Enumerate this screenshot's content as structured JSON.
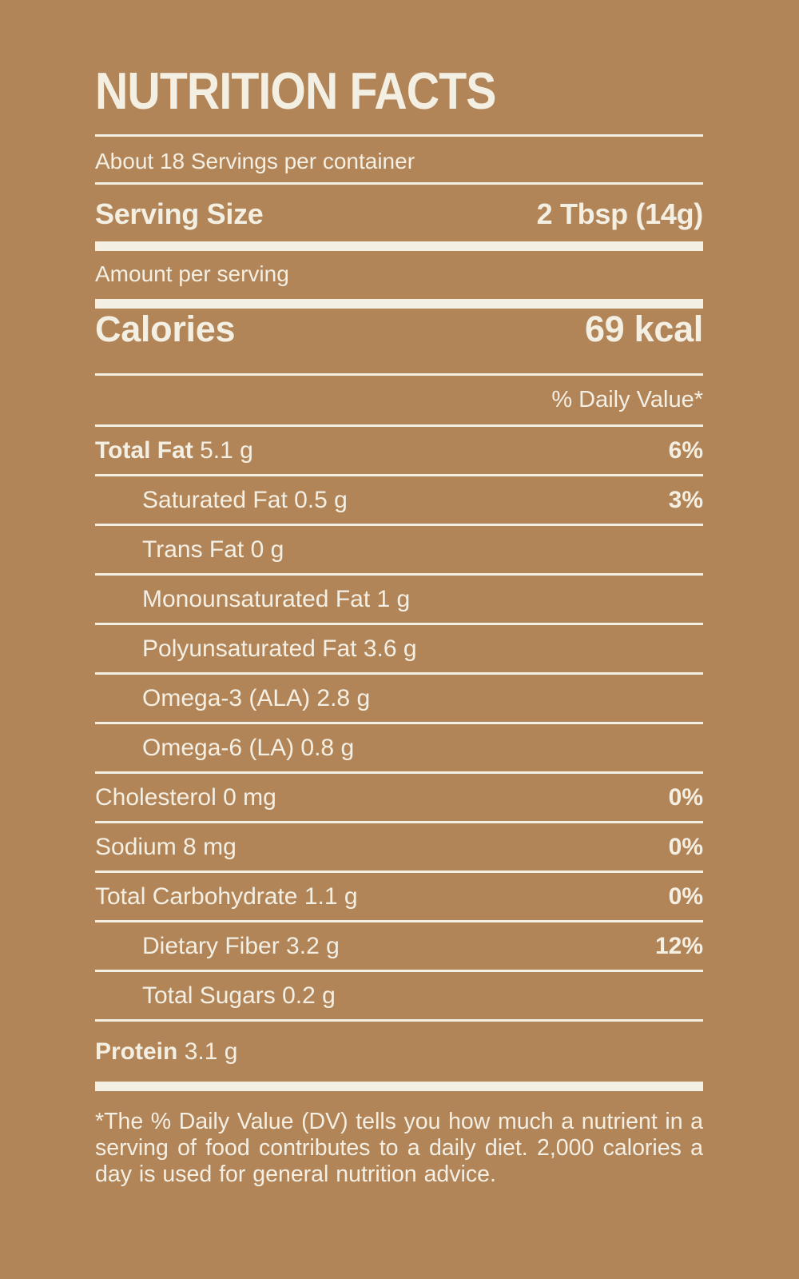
{
  "theme": {
    "background_color": "#B28559",
    "text_color": "#F4EFE3"
  },
  "title": "NUTRITION FACTS",
  "servings_per_container": "About 18 Servings per container",
  "serving_size": {
    "label": "Serving Size",
    "value": "2 Tbsp (14g)"
  },
  "amount_per_serving_label": "Amount per serving",
  "calories": {
    "label": "Calories",
    "value": "69 kcal"
  },
  "daily_value_header": "% Daily Value*",
  "nutrients": [
    {
      "label": "Total Fat",
      "amount": "5.1 g",
      "daily_value": "6%",
      "indent": false,
      "bold": true
    },
    {
      "label": "Saturated Fat",
      "amount": "0.5 g",
      "daily_value": "3%",
      "indent": true,
      "bold": false
    },
    {
      "label": "Trans Fat",
      "amount": "0 g",
      "daily_value": "",
      "indent": true,
      "bold": false
    },
    {
      "label": "Monounsaturated Fat",
      "amount": "1 g",
      "daily_value": "",
      "indent": true,
      "bold": false
    },
    {
      "label": "Polyunsaturated Fat",
      "amount": "3.6 g",
      "daily_value": "",
      "indent": true,
      "bold": false
    },
    {
      "label": "Omega-3 (ALA)",
      "amount": "2.8 g",
      "daily_value": "",
      "indent": true,
      "bold": false
    },
    {
      "label": "Omega-6 (LA)",
      "amount": "0.8 g",
      "daily_value": "",
      "indent": true,
      "bold": false
    },
    {
      "label": "Cholesterol",
      "amount": "0 mg",
      "daily_value": "0%",
      "indent": false,
      "bold": false
    },
    {
      "label": "Sodium",
      "amount": "8 mg",
      "daily_value": "0%",
      "indent": false,
      "bold": false
    },
    {
      "label": "Total Carbohydrate",
      "amount": "1.1 g",
      "daily_value": "0%",
      "indent": false,
      "bold": false
    },
    {
      "label": "Dietary Fiber",
      "amount": "3.2 g",
      "daily_value": "12%",
      "indent": true,
      "bold": false
    },
    {
      "label": "Total Sugars",
      "amount": "0.2 g",
      "daily_value": "",
      "indent": true,
      "bold": false
    },
    {
      "label": "Protein",
      "amount": "3.1 g",
      "daily_value": "",
      "indent": false,
      "bold": true
    }
  ],
  "footnote": "*The % Daily Value (DV) tells you how much a nutrient in a serving of food contributes to a daily diet. 2,000 calories a day is used for general nutrition advice."
}
